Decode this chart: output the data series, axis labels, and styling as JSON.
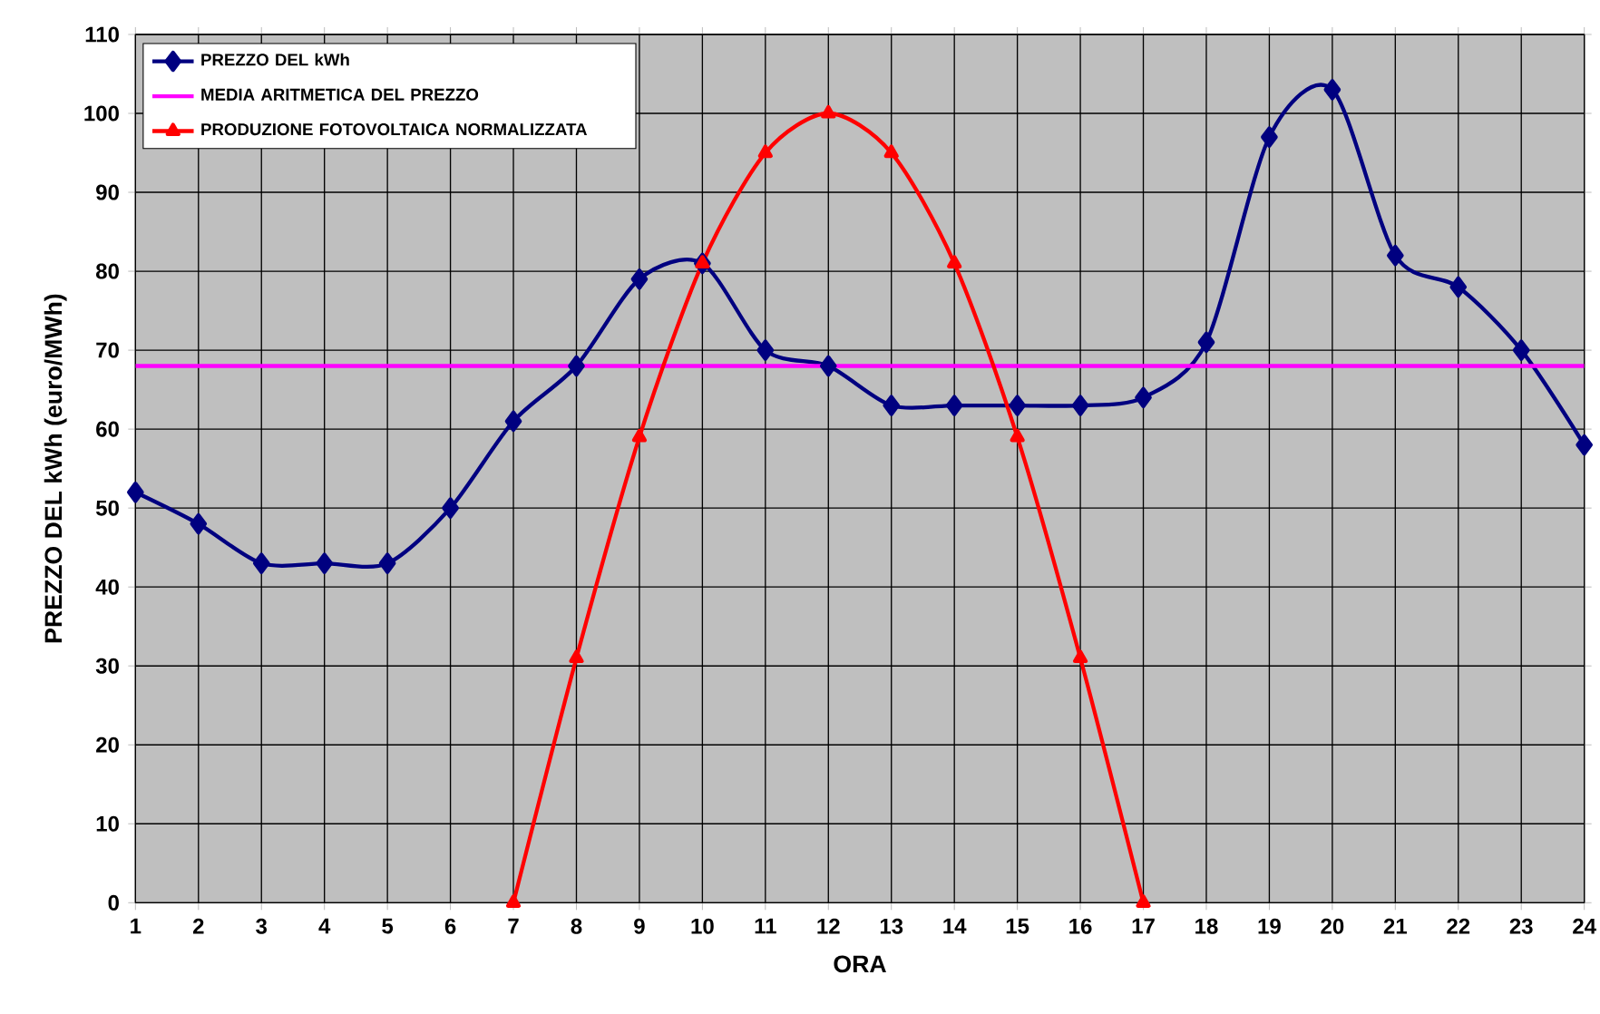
{
  "chart_data": {
    "type": "line",
    "xlabel": "ORA",
    "ylabel": "PREZZO DEL kWh (euro/MWh)",
    "xlim": [
      1,
      24
    ],
    "xticks": [
      1,
      2,
      3,
      4,
      5,
      6,
      7,
      8,
      9,
      10,
      11,
      12,
      13,
      14,
      15,
      16,
      17,
      18,
      19,
      20,
      21,
      22,
      23,
      24
    ],
    "ylim": [
      0,
      110
    ],
    "yticks": [
      0,
      10,
      20,
      30,
      40,
      50,
      60,
      70,
      80,
      90,
      100,
      110
    ],
    "grid": true,
    "legend": "top left",
    "line_style": "solid",
    "series": [
      {
        "name": "PREZZO DEL kWh",
        "color": "#000080",
        "marker": "diamond",
        "x": [
          1,
          2,
          3,
          4,
          5,
          6,
          7,
          8,
          9,
          10,
          11,
          12,
          13,
          14,
          15,
          16,
          17,
          18,
          19,
          20,
          21,
          22,
          23,
          24
        ],
        "values": [
          52,
          48,
          43,
          43,
          43,
          50,
          61,
          68,
          79,
          81,
          70,
          68,
          63,
          63,
          63,
          63,
          64,
          71,
          97,
          103,
          82,
          78,
          70,
          58
        ]
      },
      {
        "name": "MEDIA ARITMETICA DEL PREZZO",
        "color": "#ff00ff",
        "marker": "none",
        "x": [
          1,
          24
        ],
        "values": [
          68,
          68
        ]
      },
      {
        "name": "PRODUZIONE FOTOVOLTAICA NORMALIZZATA",
        "color": "#ff0000",
        "marker": "triangle",
        "x": [
          7,
          8,
          9,
          10,
          11,
          12,
          13,
          14,
          15,
          16,
          17
        ],
        "values": [
          0,
          31,
          59,
          81,
          95,
          100,
          95,
          81,
          59,
          31,
          0
        ]
      }
    ]
  }
}
